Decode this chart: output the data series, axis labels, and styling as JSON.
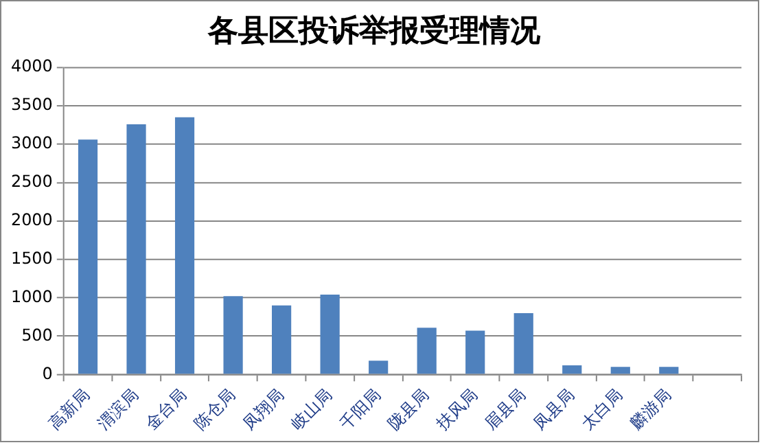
{
  "chart_data": {
    "type": "bar",
    "title": "各县区投诉举报受理情况",
    "categories": [
      "高新局",
      "渭滨局",
      "金台局",
      "陈仓局",
      "凤翔局",
      "岐山局",
      "千阳局",
      "陇县局",
      "扶风局",
      "眉县局",
      "凤县局",
      "太白局",
      "麟游局",
      null
    ],
    "series": [
      {
        "color": "#4f81bd",
        "values": [
          3060,
          3260,
          3350,
          1020,
          900,
          1040,
          180,
          610,
          570,
          800,
          120,
          100,
          100,
          null
        ]
      }
    ],
    "ylim": [
      0,
      4000
    ],
    "yticks": [
      0,
      500,
      1000,
      1500,
      2000,
      2500,
      3000,
      3500,
      4000
    ],
    "grid": "y",
    "legend": false
  }
}
